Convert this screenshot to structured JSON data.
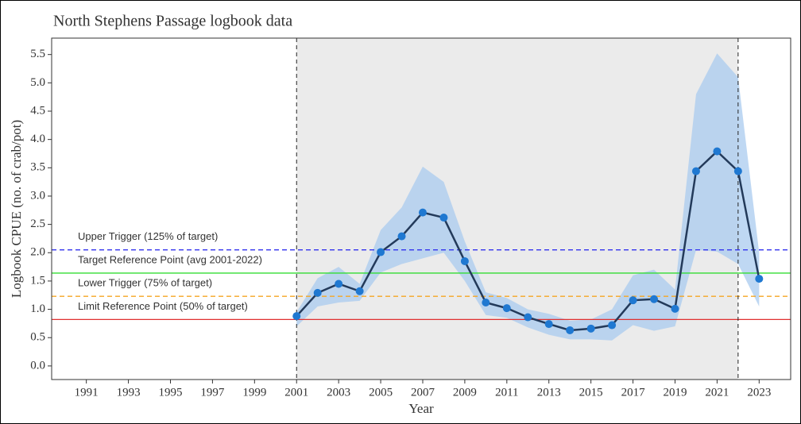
{
  "chart_data": {
    "type": "line",
    "title": "North Stephens Passage logbook data",
    "x_label": "Year",
    "y_label": "Logbook CPUE (no. of crab/pot)",
    "x": [
      2001,
      2002,
      2003,
      2004,
      2005,
      2006,
      2007,
      2008,
      2009,
      2010,
      2011,
      2012,
      2013,
      2014,
      2015,
      2016,
      2017,
      2018,
      2019,
      2020,
      2021,
      2022,
      2023
    ],
    "series": [
      {
        "color": "#1f78d1",
        "values": [
          0.88,
          1.29,
          1.45,
          1.32,
          2.01,
          2.29,
          2.71,
          2.62,
          1.85,
          1.12,
          1.02,
          0.86,
          0.74,
          0.63,
          0.66,
          0.72,
          1.16,
          1.18,
          1.01,
          3.44,
          3.79,
          3.44,
          1.54
        ],
        "upper": [
          0.95,
          1.55,
          1.75,
          1.45,
          2.4,
          2.8,
          3.52,
          3.25,
          2.2,
          1.3,
          1.2,
          1.0,
          0.92,
          0.8,
          0.82,
          1.0,
          1.6,
          1.7,
          1.35,
          4.8,
          5.52,
          5.1,
          2.0
        ],
        "lower": [
          0.7,
          1.05,
          1.12,
          1.15,
          1.65,
          1.8,
          1.9,
          2.0,
          1.5,
          0.9,
          0.85,
          0.68,
          0.55,
          0.47,
          0.47,
          0.45,
          0.72,
          0.62,
          0.7,
          2.05,
          2.02,
          1.8,
          1.05
        ]
      }
    ],
    "reference_lines": [
      {
        "label": "Upper Trigger (125% of target)",
        "value": 2.05,
        "color": "#3333ee",
        "dashed": true
      },
      {
        "label": "Target Reference Point (avg 2001-2022)",
        "value": 1.64,
        "color": "#33dd33",
        "dashed": false
      },
      {
        "label": "Lower Trigger (75% of target)",
        "value": 1.23,
        "color": "#f5a623",
        "dashed": true
      },
      {
        "label": "Limit Reference Point (50% of target)",
        "value": 0.82,
        "color": "#e03030",
        "dashed": false
      }
    ],
    "shaded_period": [
      2001,
      2022
    ],
    "xlim": [
      1989.35,
      2024.5
    ],
    "ylim": [
      -0.24,
      5.79
    ],
    "xticks": [
      1991,
      1993,
      1995,
      1997,
      1999,
      2001,
      2003,
      2005,
      2007,
      2009,
      2011,
      2013,
      2015,
      2017,
      2019,
      2021,
      2023
    ],
    "yticks": [
      {
        "value": 0,
        "label": "0.0"
      },
      0.5,
      {
        "value": 1,
        "label": "1.0"
      },
      1.5,
      {
        "value": 2,
        "label": "2.0"
      },
      2.5,
      {
        "value": 3,
        "label": "3.0"
      },
      3.5,
      {
        "value": 4,
        "label": "4.0"
      },
      4.5,
      {
        "value": 5,
        "label": "5.0"
      },
      5.5
    ]
  }
}
